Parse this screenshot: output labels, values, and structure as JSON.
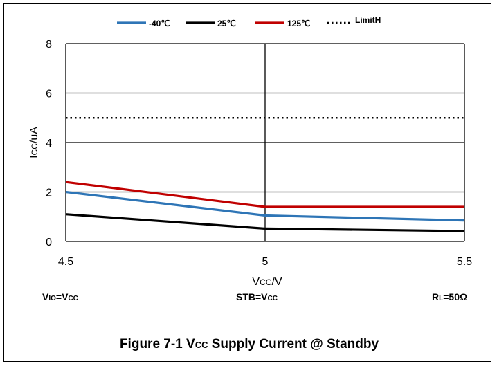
{
  "chart_data": {
    "type": "line",
    "x": [
      4.5,
      5,
      5.5
    ],
    "x_tick_labels": [
      "4.5",
      "5",
      "5.5"
    ],
    "y_tick_labels": [
      "0",
      "2",
      "4",
      "6",
      "8"
    ],
    "xlim": [
      4.5,
      5.5
    ],
    "ylim": [
      0,
      8
    ],
    "grid": true,
    "legend_position": "top",
    "xlabel": {
      "main": "V",
      "sub": "CC",
      "tail": "/V"
    },
    "ylabel": {
      "main": "I",
      "sub": "CC",
      "tail": "/uA"
    },
    "series": [
      {
        "name": "-40℃",
        "color": "#2e75b6",
        "style": "solid",
        "values": [
          2.0,
          1.05,
          0.85
        ]
      },
      {
        "name": "25℃",
        "color": "#000000",
        "style": "solid",
        "values": [
          1.1,
          0.52,
          0.42
        ]
      },
      {
        "name": "125℃",
        "color": "#c00000",
        "style": "solid",
        "values": [
          2.4,
          1.4,
          1.4
        ]
      },
      {
        "name": "LimitH",
        "color": "#000000",
        "style": "dotted",
        "values": [
          5.0,
          5.0,
          5.0
        ]
      }
    ]
  },
  "conditions": {
    "left": {
      "a": "V",
      "a_sub": "IO",
      "b": "=V",
      "b_sub": "CC"
    },
    "center": {
      "a": "STB=V",
      "a_sub": "CC"
    },
    "right": {
      "a": "R",
      "a_sub": "L",
      "b": "=50Ω"
    }
  },
  "caption": {
    "prefix": "Figure  7-1 V",
    "sub": "CC",
    "suffix": " Supply Current @ Standby"
  }
}
